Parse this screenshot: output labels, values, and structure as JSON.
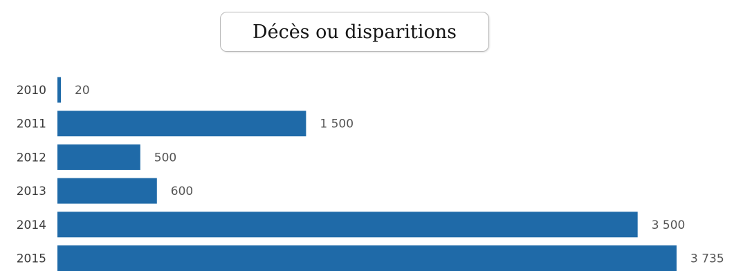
{
  "chart_data": {
    "type": "bar",
    "orientation": "horizontal",
    "title": "Décès ou disparitions",
    "categories": [
      "2010",
      "2011",
      "2012",
      "2013",
      "2014",
      "2015"
    ],
    "values": [
      20,
      1500,
      500,
      600,
      3500,
      3735
    ],
    "value_labels": [
      "20",
      "1 500",
      "500",
      "600",
      "3 500",
      "3 735"
    ],
    "xlabel": "",
    "ylabel": "",
    "xlim": [
      0,
      3735
    ],
    "grid": false,
    "legend": "none",
    "bar_color": "#1f6aa8"
  }
}
